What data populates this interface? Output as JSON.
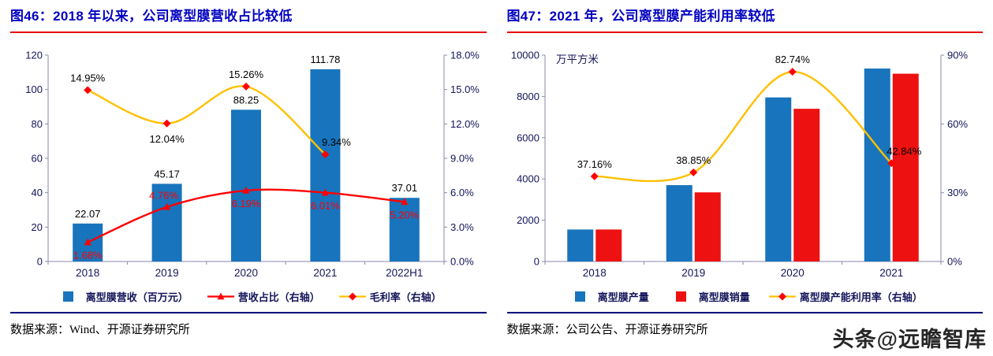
{
  "watermark": "头条@远瞻智库",
  "fig46": {
    "title": "图46：2018 年以来，公司离型膜营收占比较低",
    "source": "数据来源：Wind、开源证券研究所"
  },
  "fig47": {
    "title": "图47：2021 年，公司离型膜产能利用率较低",
    "source": "数据来源：公司公告、开源证券研究所"
  },
  "colors": {
    "bar_blue": "#1874bc",
    "bar_red": "#ee1111",
    "line_red": "#ff0000",
    "line_yellow": "#ffc000",
    "title_blue": "#0202c0",
    "title_rule_red": "#e60000",
    "source_rule_navy": "#00007e",
    "axis_text_navy": "#14145a"
  },
  "chart_data": [
    {
      "id": "chart46",
      "type": "combo",
      "title": "2018 年以来，公司离型膜营收占比较低",
      "grid": false,
      "legend_position": "bottom",
      "categories": [
        "2018",
        "2019",
        "2020",
        "2021",
        "2022H1"
      ],
      "left_axis": {
        "min": 0,
        "max": 120,
        "step": 20,
        "format": "int"
      },
      "right_axis": {
        "min": 0,
        "max": 18,
        "step": 3,
        "format": "pct1"
      },
      "series": [
        {
          "name": "离型膜营收（百万元）",
          "type": "bar",
          "axis": "left",
          "color": "#1874bc",
          "values": [
            22.07,
            45.17,
            88.25,
            111.78,
            37.01
          ],
          "labels": [
            "22.07",
            "45.17",
            "88.25",
            "111.78",
            "37.01"
          ],
          "label_color": "#000000",
          "label_offsets": [
            [
              0,
              -8
            ],
            [
              0,
              -8
            ],
            [
              0,
              -8
            ],
            [
              0,
              -8
            ],
            [
              0,
              -8
            ]
          ]
        },
        {
          "name": "营收占比（右轴）",
          "type": "line",
          "axis": "right",
          "marker": "triangle",
          "color": "#ff0000",
          "marker_color": "#ff0000",
          "values": [
            1.68,
            4.76,
            6.19,
            6.01,
            5.2
          ],
          "labels": [
            "1.68%",
            "4.76%",
            "6.19%",
            "6.01%",
            "5.20%"
          ],
          "label_color": "#ff0000",
          "label_offsets": [
            [
              0,
              21
            ],
            [
              -4,
              -10
            ],
            [
              0,
              21
            ],
            [
              0,
              21
            ],
            [
              0,
              21
            ]
          ]
        },
        {
          "name": "毛利率（右轴）",
          "type": "line",
          "axis": "right",
          "marker": "diamond",
          "color": "#ffc000",
          "marker_color": "#ff0000",
          "values": [
            14.95,
            12.04,
            15.26,
            9.34,
            null
          ],
          "labels": [
            "14.95%",
            "12.04%",
            "15.26%",
            "9.34%",
            ""
          ],
          "label_color": "#000000",
          "label_offsets": [
            [
              0,
              -11
            ],
            [
              0,
              24
            ],
            [
              0,
              -11
            ],
            [
              14,
              -11
            ],
            [
              0,
              0
            ]
          ]
        }
      ],
      "legend": [
        {
          "label": "离型膜营收（百万元）",
          "swatch": "bar",
          "color": "#1874bc"
        },
        {
          "label": "营收占比（右轴）",
          "swatch": "line",
          "marker": "triangle",
          "color": "#ff0000",
          "marker_color": "#ff0000"
        },
        {
          "label": "毛利率（右轴）",
          "swatch": "line",
          "marker": "diamond",
          "color": "#ffc000",
          "marker_color": "#ff0000"
        }
      ]
    },
    {
      "id": "chart47",
      "type": "combo",
      "title": "2021 年，公司离型膜产能利用率较低",
      "grid": false,
      "legend_position": "bottom",
      "unit_label": "万平方米",
      "categories": [
        "2018",
        "2019",
        "2020",
        "2021"
      ],
      "left_axis": {
        "min": 0,
        "max": 10000,
        "step": 2000,
        "format": "int"
      },
      "right_axis": {
        "min": 0,
        "max": 90,
        "step": 30,
        "format": "pct0"
      },
      "series": [
        {
          "name": "离型膜产量",
          "type": "bar",
          "axis": "left",
          "color": "#1874bc",
          "values": [
            1550,
            3700,
            7950,
            9350
          ]
        },
        {
          "name": "离型膜销量",
          "type": "bar",
          "axis": "left",
          "color": "#ee1111",
          "values": [
            1550,
            3350,
            7400,
            9100
          ]
        },
        {
          "name": "离型膜产能利用率（右轴）",
          "type": "line",
          "axis": "right",
          "marker": "diamond",
          "color": "#ffc000",
          "marker_color": "#ff0000",
          "values": [
            37.16,
            38.85,
            82.74,
            42.84
          ],
          "labels": [
            "37.16%",
            "38.85%",
            "82.74%",
            "42.84%"
          ],
          "label_color": "#000000",
          "label_offsets": [
            [
              0,
              -11
            ],
            [
              0,
              -11
            ],
            [
              0,
              -11
            ],
            [
              16,
              -11
            ]
          ]
        }
      ],
      "legend": [
        {
          "label": "离型膜产量",
          "swatch": "bar",
          "color": "#1874bc"
        },
        {
          "label": "离型膜销量",
          "swatch": "bar",
          "color": "#ee1111"
        },
        {
          "label": "离型膜产能利用率（右轴）",
          "swatch": "line",
          "marker": "diamond",
          "color": "#ffc000",
          "marker_color": "#ff0000"
        }
      ]
    }
  ]
}
